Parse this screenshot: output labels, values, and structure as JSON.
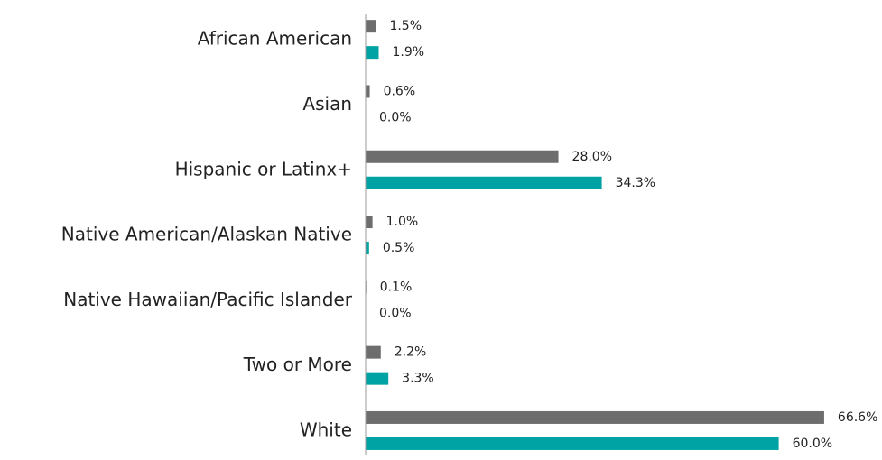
{
  "chart_data": {
    "type": "hbar",
    "categories": [
      "African American",
      "Asian",
      "Hispanic or Latinx+",
      "Native American/Alaskan Native",
      "Native Hawaiian/Pacific Islander",
      "Two or More",
      "White"
    ],
    "series": [
      {
        "color": "#6d6d6d",
        "values": [
          1.5,
          0.6,
          28.0,
          1.0,
          0.1,
          2.2,
          66.6
        ],
        "value_labels": [
          "1.5%",
          "0.6%",
          "28.0%",
          "1.0%",
          "0.1%",
          "2.2%",
          "66.6%"
        ]
      },
      {
        "color": "#00a3a3",
        "values": [
          1.9,
          0.0,
          34.3,
          0.5,
          0.0,
          3.3,
          60.0
        ],
        "value_labels": [
          "1.9%",
          "0.0%",
          "34.3%",
          "0.5%",
          "0.0%",
          "3.3%",
          "60.0%"
        ]
      }
    ],
    "xlim": [
      0,
      75
    ]
  }
}
